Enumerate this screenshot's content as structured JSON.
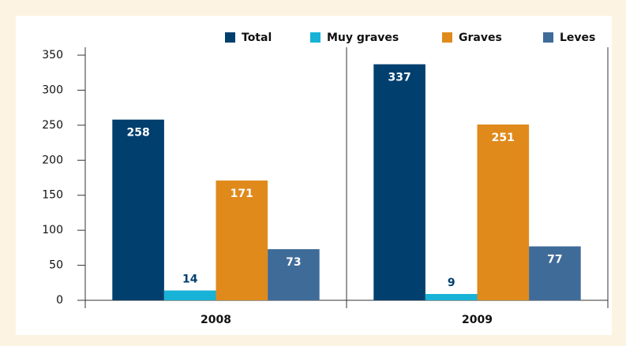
{
  "chart_data": {
    "type": "bar",
    "categories": [
      "2008",
      "2009"
    ],
    "series": [
      {
        "name": "Total",
        "color": "#003f6e",
        "values": [
          258,
          337
        ]
      },
      {
        "name": "Muy graves",
        "color": "#17b2d6",
        "values": [
          14,
          9
        ]
      },
      {
        "name": "Graves",
        "color": "#e08a1c",
        "values": [
          171,
          251
        ]
      },
      {
        "name": "Leves",
        "color": "#3f6b99",
        "values": [
          73,
          77
        ]
      }
    ],
    "ylim": [
      0,
      350
    ],
    "yticks": [
      0,
      50,
      100,
      150,
      200,
      250,
      300,
      350
    ],
    "grid": false,
    "legend": "top-right"
  }
}
